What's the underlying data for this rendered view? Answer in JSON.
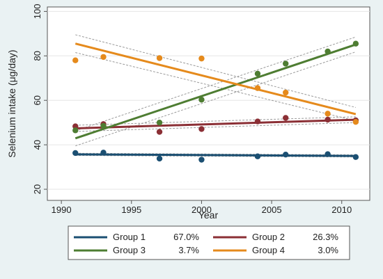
{
  "chart_data": {
    "type": "scatter",
    "title": "",
    "xlabel": "Year",
    "ylabel": "Selenium intake (μg/day)",
    "xlim": [
      1989,
      2012
    ],
    "ylim": [
      15,
      102
    ],
    "xticks": [
      1990,
      1995,
      2000,
      2005,
      2010
    ],
    "yticks": [
      20,
      40,
      60,
      80,
      100
    ],
    "grid": "horizontal",
    "legend_position": "bottom",
    "series": [
      {
        "name": "Group 1",
        "share": "67.0%",
        "color": "#1b4f72",
        "x": [
          1991,
          1993,
          1997,
          2000,
          2004,
          2006,
          2009,
          2011
        ],
        "y": [
          36.3,
          36.5,
          33.8,
          33.3,
          34.8,
          35.6,
          35.8,
          34.5
        ],
        "fit": [
          35.7,
          35.0
        ],
        "ci_lower": [
          35.2,
          34.5
        ],
        "ci_upper": [
          36.2,
          35.5
        ]
      },
      {
        "name": "Group 2",
        "share": "26.3%",
        "color": "#8b2f35",
        "x": [
          1991,
          1993,
          1997,
          2000,
          2004,
          2006,
          2009,
          2011
        ],
        "y": [
          48.3,
          49.3,
          45.8,
          47.1,
          50.5,
          52.1,
          51.3,
          51.0
        ],
        "fit": [
          47.4,
          51.3
        ],
        "ci_lower": [
          46.0,
          50.0
        ],
        "ci_upper": [
          48.8,
          52.6
        ]
      },
      {
        "name": "Group 3",
        "share": "3.7%",
        "color": "#4e7d32",
        "x": [
          1991,
          1993,
          1997,
          2000,
          2004,
          2006,
          2009,
          2011
        ],
        "y": [
          46.5,
          48.5,
          50.0,
          60.3,
          72.0,
          76.5,
          82.0,
          85.5
        ],
        "fit": [
          42.9,
          85.1
        ],
        "ci_lower": [
          39.5,
          81.8
        ],
        "ci_upper": [
          46.3,
          88.5
        ]
      },
      {
        "name": "Group 4",
        "share": "3.0%",
        "color": "#e58a1c",
        "x": [
          1991,
          1993,
          1997,
          2000,
          2004,
          2006,
          2009,
          2011
        ],
        "y": [
          78.0,
          79.5,
          79.0,
          78.8,
          65.5,
          63.5,
          54.0,
          50.3
        ],
        "fit": [
          85.5,
          53.8
        ],
        "ci_lower": [
          81.5,
          50.8
        ],
        "ci_upper": [
          89.5,
          56.8
        ]
      }
    ]
  }
}
